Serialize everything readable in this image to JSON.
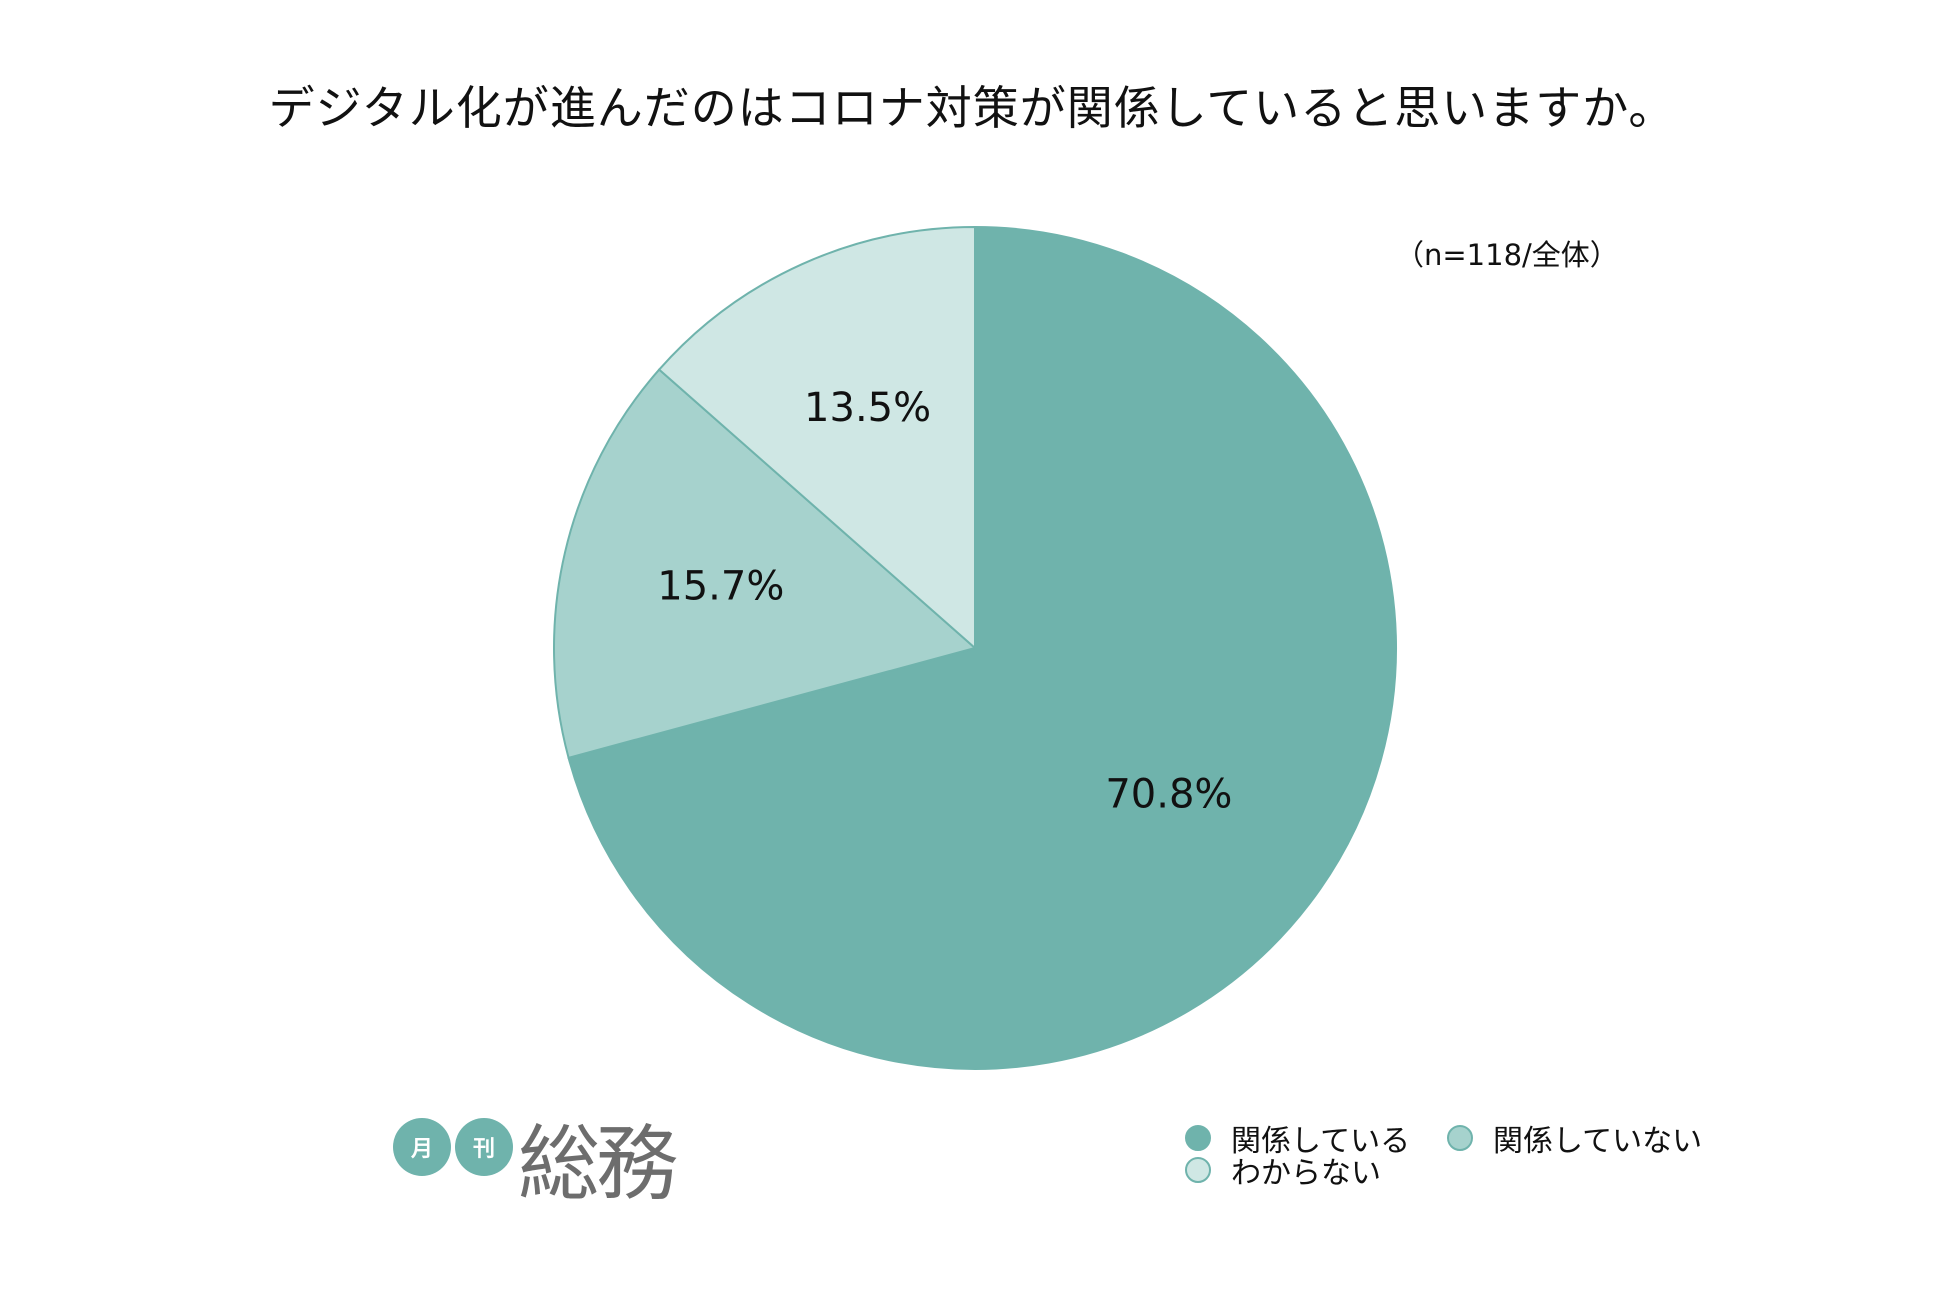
{
  "chart_data": {
    "type": "pie",
    "title": "デジタル化が進んだのはコロナ対策が関係していると思いますか。",
    "note": "（n=118/全体）",
    "slices": [
      {
        "label": "関係している",
        "value": 70.8,
        "display": "70.8%",
        "color": "#6fb3ac"
      },
      {
        "label": "関係していない",
        "value": 15.7,
        "display": "15.7%",
        "color": "#a6d2cd"
      },
      {
        "label": "わからない",
        "value": 13.5,
        "display": "13.5%",
        "color": "#cfe7e4"
      }
    ],
    "legend_position": "bottom-right"
  },
  "logo": {
    "small_1": "月",
    "small_2": "刊",
    "wordmark": "総務"
  }
}
